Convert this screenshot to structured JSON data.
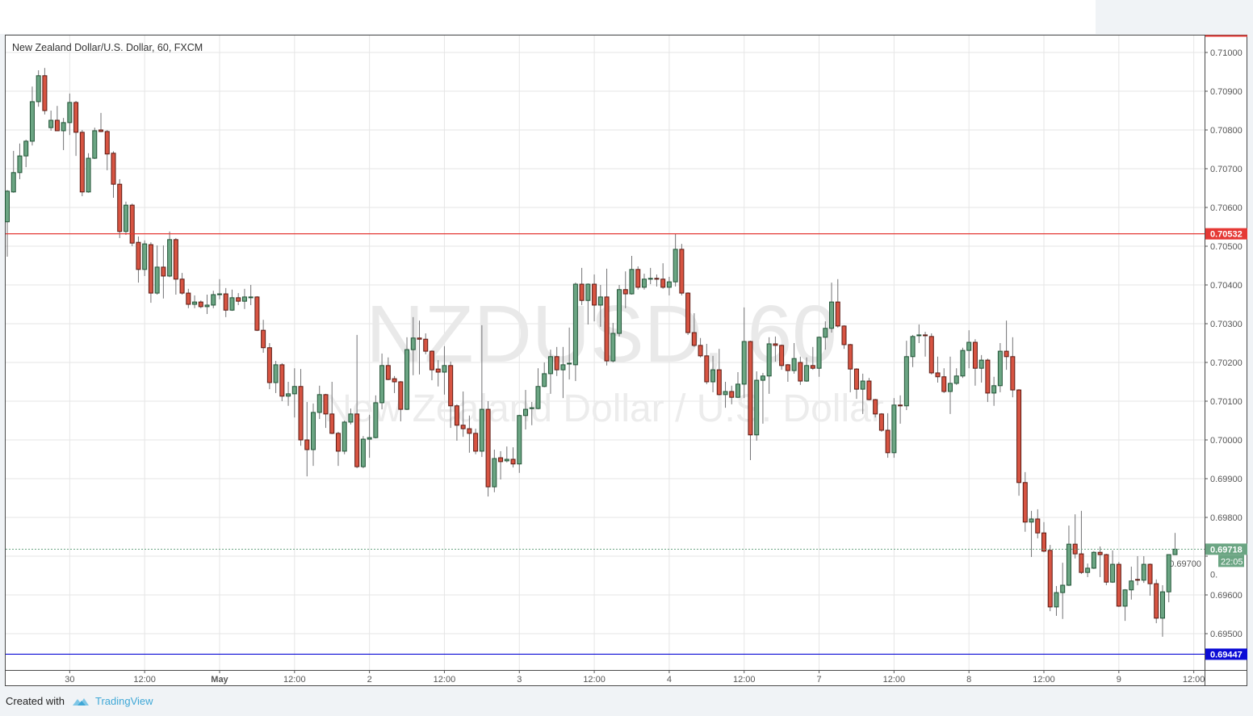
{
  "header": {
    "title": "New Zealand Dollar/U.S. Dollar, 60, FXCM"
  },
  "watermark": {
    "symbol": "NZDUSD, 60",
    "description": "New Zealand Dollar / U.S. Dollar"
  },
  "footer": {
    "created_with": "Created with",
    "brand": "TradingView",
    "logo_icon": "tradingview-cloud-icon"
  },
  "colors": {
    "up": "#6ba583",
    "up_border": "#225437",
    "down": "#d75442",
    "down_border": "#5b1a13",
    "wick": "#737375",
    "resistance": "#e53935",
    "support": "#0b0bd6",
    "last_price": "#6ba583"
  },
  "chart_data": {
    "type": "candlestick",
    "symbol": "NZDUSD",
    "interval": "60",
    "exchange": "FXCM",
    "grid": true,
    "ylim": [
      0.6944,
      0.7104
    ],
    "y_ticks": [
      "0.71000",
      "0.70900",
      "0.70800",
      "0.70700",
      "0.70600",
      "0.70500",
      "0.70400",
      "0.70300",
      "0.70200",
      "0.70100",
      "0.70000",
      "0.69900",
      "0.69800",
      "0.69700",
      "0.69600",
      "0.69500"
    ],
    "x_ticks": [
      {
        "label": "30",
        "bar": 10
      },
      {
        "label": "12:00",
        "bar": 22
      },
      {
        "label": "May",
        "bar": 34,
        "bold": true
      },
      {
        "label": "12:00",
        "bar": 46
      },
      {
        "label": "2",
        "bar": 58
      },
      {
        "label": "12:00",
        "bar": 70
      },
      {
        "label": "3",
        "bar": 82
      },
      {
        "label": "12:00",
        "bar": 94
      },
      {
        "label": "4",
        "bar": 106
      },
      {
        "label": "12:00",
        "bar": 118
      },
      {
        "label": "7",
        "bar": 130
      },
      {
        "label": "12:00",
        "bar": 142
      },
      {
        "label": "8",
        "bar": 154
      },
      {
        "label": "12:00",
        "bar": 166
      },
      {
        "label": "9",
        "bar": 178
      },
      {
        "label": "12:00",
        "bar": 190
      }
    ],
    "horizontal_lines": [
      {
        "price": 0.70532,
        "label": "0.70532",
        "color": "#e53935",
        "style": "solid"
      },
      {
        "price": 0.69447,
        "label": "0.69447",
        "color": "#0b0bd6",
        "style": "solid"
      }
    ],
    "last_price": {
      "price": 0.69718,
      "label": "0.69718",
      "countdown": "22:05",
      "hidden_tick": "0."
    },
    "ohlc_columns": [
      "open",
      "high",
      "low",
      "close"
    ],
    "candles": [
      [
        0.70563,
        0.70645,
        0.70473,
        0.70642
      ],
      [
        0.7064,
        0.70746,
        0.70638,
        0.7069
      ],
      [
        0.7069,
        0.70765,
        0.70673,
        0.70733
      ],
      [
        0.70733,
        0.70775,
        0.70704,
        0.70771
      ],
      [
        0.70771,
        0.70912,
        0.7076,
        0.70873
      ],
      [
        0.70873,
        0.70954,
        0.7086,
        0.7094
      ],
      [
        0.7094,
        0.7096,
        0.7084,
        0.7085
      ],
      [
        0.70806,
        0.7085,
        0.70798,
        0.70825
      ],
      [
        0.70825,
        0.70862,
        0.70798,
        0.70798
      ],
      [
        0.70798,
        0.70831,
        0.70748,
        0.70819
      ],
      [
        0.70819,
        0.70894,
        0.70787,
        0.70871
      ],
      [
        0.70871,
        0.70875,
        0.70733,
        0.70794
      ],
      [
        0.70794,
        0.708,
        0.70629,
        0.7064
      ],
      [
        0.7064,
        0.7074,
        0.70638,
        0.70727
      ],
      [
        0.70727,
        0.70806,
        0.70725,
        0.70798
      ],
      [
        0.708,
        0.70844,
        0.70794,
        0.70796
      ],
      [
        0.70796,
        0.708,
        0.70696,
        0.70738
      ],
      [
        0.7074,
        0.70745,
        0.70625,
        0.7066
      ],
      [
        0.7066,
        0.70673,
        0.70521,
        0.70538
      ],
      [
        0.70538,
        0.70615,
        0.70529,
        0.70606
      ],
      [
        0.70606,
        0.7061,
        0.705,
        0.70508
      ],
      [
        0.7051,
        0.70525,
        0.70406,
        0.7044
      ],
      [
        0.7044,
        0.70515,
        0.70423,
        0.70506
      ],
      [
        0.70504,
        0.7051,
        0.70354,
        0.70379
      ],
      [
        0.70379,
        0.70502,
        0.70375,
        0.70446
      ],
      [
        0.70446,
        0.70502,
        0.70365,
        0.70423
      ],
      [
        0.70423,
        0.70538,
        0.7042,
        0.70517
      ],
      [
        0.70517,
        0.70521,
        0.70375,
        0.70415
      ],
      [
        0.70415,
        0.70431,
        0.70375,
        0.70379
      ],
      [
        0.70379,
        0.7039,
        0.7034,
        0.7035
      ],
      [
        0.7035,
        0.70373,
        0.7034,
        0.70356
      ],
      [
        0.70356,
        0.7036,
        0.7034,
        0.70344
      ],
      [
        0.70344,
        0.70375,
        0.70325,
        0.70348
      ],
      [
        0.70348,
        0.70385,
        0.7034,
        0.70375
      ],
      [
        0.70375,
        0.70415,
        0.70363,
        0.70377
      ],
      [
        0.70377,
        0.70392,
        0.70317,
        0.70335
      ],
      [
        0.70335,
        0.70388,
        0.70333,
        0.70367
      ],
      [
        0.70367,
        0.70379,
        0.70348,
        0.70358
      ],
      [
        0.70358,
        0.7039,
        0.70338,
        0.70369
      ],
      [
        0.70369,
        0.704,
        0.70348,
        0.70369
      ],
      [
        0.70369,
        0.70371,
        0.70281,
        0.70283
      ],
      [
        0.70283,
        0.7031,
        0.70225,
        0.70238
      ],
      [
        0.70238,
        0.7025,
        0.70131,
        0.70148
      ],
      [
        0.70148,
        0.70204,
        0.70121,
        0.70194
      ],
      [
        0.70194,
        0.70198,
        0.701,
        0.70113
      ],
      [
        0.70113,
        0.7015,
        0.70088,
        0.70119
      ],
      [
        0.70119,
        0.70185,
        0.70058,
        0.70138
      ],
      [
        0.70138,
        0.70183,
        0.69985,
        0.7
      ],
      [
        0.7,
        0.70098,
        0.69906,
        0.69975
      ],
      [
        0.69975,
        0.70094,
        0.69933,
        0.70071
      ],
      [
        0.70071,
        0.7014,
        0.70054,
        0.70117
      ],
      [
        0.70117,
        0.70119,
        0.70031,
        0.70067
      ],
      [
        0.70067,
        0.7015,
        0.70015,
        0.70017
      ],
      [
        0.70017,
        0.70021,
        0.69933,
        0.69971
      ],
      [
        0.69971,
        0.7005,
        0.69963,
        0.70046
      ],
      [
        0.70046,
        0.70081,
        0.7004,
        0.70067
      ],
      [
        0.70067,
        0.70271,
        0.69927,
        0.69931
      ],
      [
        0.69931,
        0.7001,
        0.69927,
        0.70002
      ],
      [
        0.70002,
        0.70065,
        0.69954,
        0.70006
      ],
      [
        0.70006,
        0.70115,
        0.70004,
        0.70096
      ],
      [
        0.70096,
        0.70223,
        0.70079,
        0.70192
      ],
      [
        0.70192,
        0.70213,
        0.70154,
        0.70156
      ],
      [
        0.70158,
        0.70165,
        0.70121,
        0.7015
      ],
      [
        0.7015,
        0.70152,
        0.70048,
        0.70079
      ],
      [
        0.70079,
        0.70265,
        0.70077,
        0.70233
      ],
      [
        0.70233,
        0.70317,
        0.70167,
        0.70263
      ],
      [
        0.70263,
        0.70308,
        0.70169,
        0.7026
      ],
      [
        0.7026,
        0.70275,
        0.70221,
        0.70229
      ],
      [
        0.70229,
        0.70231,
        0.70154,
        0.70181
      ],
      [
        0.70183,
        0.70206,
        0.70138,
        0.70175
      ],
      [
        0.70175,
        0.70242,
        0.70117,
        0.70192
      ],
      [
        0.70192,
        0.70202,
        0.70031,
        0.70088
      ],
      [
        0.70088,
        0.70092,
        0.69998,
        0.70038
      ],
      [
        0.70038,
        0.70125,
        0.70008,
        0.70029
      ],
      [
        0.70029,
        0.70063,
        0.69967,
        0.70017
      ],
      [
        0.70017,
        0.70029,
        0.69963,
        0.69971
      ],
      [
        0.69971,
        0.70296,
        0.69956,
        0.70079
      ],
      [
        0.70079,
        0.701,
        0.69854,
        0.69879
      ],
      [
        0.69879,
        0.69975,
        0.69865,
        0.69952
      ],
      [
        0.69954,
        0.69971,
        0.69898,
        0.69944
      ],
      [
        0.69946,
        0.69983,
        0.69942,
        0.6995
      ],
      [
        0.6995,
        0.69981,
        0.69929,
        0.69938
      ],
      [
        0.69938,
        0.70065,
        0.69915,
        0.70063
      ],
      [
        0.70063,
        0.70129,
        0.70027,
        0.70079
      ],
      [
        0.70081,
        0.70098,
        0.70038,
        0.70083
      ],
      [
        0.70081,
        0.70185,
        0.70079,
        0.70138
      ],
      [
        0.70138,
        0.702,
        0.70136,
        0.70171
      ],
      [
        0.70171,
        0.70233,
        0.70119,
        0.70215
      ],
      [
        0.70215,
        0.7024,
        0.70165,
        0.70181
      ],
      [
        0.70181,
        0.7024,
        0.70108,
        0.70194
      ],
      [
        0.70196,
        0.7029,
        0.70156,
        0.70198
      ],
      [
        0.70194,
        0.70406,
        0.70152,
        0.70402
      ],
      [
        0.70402,
        0.70444,
        0.70348,
        0.7036
      ],
      [
        0.7036,
        0.70404,
        0.70298,
        0.70402
      ],
      [
        0.70402,
        0.70427,
        0.70306,
        0.70348
      ],
      [
        0.70348,
        0.704,
        0.70292,
        0.70369
      ],
      [
        0.70369,
        0.70442,
        0.70192,
        0.70204
      ],
      [
        0.70204,
        0.70302,
        0.702,
        0.70275
      ],
      [
        0.70275,
        0.704,
        0.70267,
        0.70388
      ],
      [
        0.70388,
        0.70435,
        0.7034,
        0.70377
      ],
      [
        0.70377,
        0.70475,
        0.70375,
        0.7044
      ],
      [
        0.7044,
        0.70448,
        0.70388,
        0.70394
      ],
      [
        0.70394,
        0.70429,
        0.70388,
        0.70415
      ],
      [
        0.70415,
        0.70444,
        0.70402,
        0.70417
      ],
      [
        0.70417,
        0.70427,
        0.70396,
        0.70415
      ],
      [
        0.70415,
        0.70456,
        0.7039,
        0.70394
      ],
      [
        0.70394,
        0.70421,
        0.70373,
        0.70408
      ],
      [
        0.70408,
        0.70533,
        0.70396,
        0.70492
      ],
      [
        0.70492,
        0.70506,
        0.70373,
        0.70379
      ],
      [
        0.70379,
        0.70381,
        0.70271,
        0.70277
      ],
      [
        0.70277,
        0.70327,
        0.7024,
        0.70244
      ],
      [
        0.70244,
        0.70263,
        0.70213,
        0.70217
      ],
      [
        0.70217,
        0.70248,
        0.70144,
        0.7015
      ],
      [
        0.7015,
        0.70217,
        0.70123,
        0.70181
      ],
      [
        0.70181,
        0.70235,
        0.70115,
        0.70117
      ],
      [
        0.70117,
        0.7015,
        0.70083,
        0.70125
      ],
      [
        0.70125,
        0.7014,
        0.70092,
        0.7011
      ],
      [
        0.7011,
        0.70175,
        0.70108,
        0.70144
      ],
      [
        0.70144,
        0.70342,
        0.70108,
        0.70254
      ],
      [
        0.70254,
        0.70256,
        0.69948,
        0.70013
      ],
      [
        0.70013,
        0.70177,
        0.69998,
        0.70154
      ],
      [
        0.70154,
        0.70173,
        0.70042,
        0.70165
      ],
      [
        0.70165,
        0.70265,
        0.70119,
        0.70248
      ],
      [
        0.70248,
        0.70267,
        0.70202,
        0.70244
      ],
      [
        0.70244,
        0.70246,
        0.70181,
        0.70192
      ],
      [
        0.70194,
        0.70196,
        0.7015,
        0.70179
      ],
      [
        0.70179,
        0.7025,
        0.70171,
        0.7021
      ],
      [
        0.702,
        0.70215,
        0.70142,
        0.70152
      ],
      [
        0.70152,
        0.70213,
        0.7015,
        0.70192
      ],
      [
        0.70192,
        0.7024,
        0.70181,
        0.70185
      ],
      [
        0.70185,
        0.70267,
        0.70163,
        0.70265
      ],
      [
        0.70265,
        0.70306,
        0.70233,
        0.70288
      ],
      [
        0.70288,
        0.70406,
        0.70277,
        0.70356
      ],
      [
        0.70356,
        0.70415,
        0.7029,
        0.70294
      ],
      [
        0.70294,
        0.70296,
        0.70235,
        0.70246
      ],
      [
        0.70246,
        0.70248,
        0.70123,
        0.70183
      ],
      [
        0.70183,
        0.70185,
        0.70106,
        0.70131
      ],
      [
        0.70131,
        0.70171,
        0.70067,
        0.70152
      ],
      [
        0.70152,
        0.7016,
        0.70102,
        0.70104
      ],
      [
        0.70104,
        0.70106,
        0.70058,
        0.70067
      ],
      [
        0.70067,
        0.70069,
        0.70021,
        0.70025
      ],
      [
        0.70025,
        0.70069,
        0.69954,
        0.69967
      ],
      [
        0.69967,
        0.70108,
        0.69954,
        0.7009
      ],
      [
        0.7009,
        0.70115,
        0.70042,
        0.70088
      ],
      [
        0.70088,
        0.70256,
        0.70077,
        0.70215
      ],
      [
        0.70215,
        0.70271,
        0.70188,
        0.70267
      ],
      [
        0.70269,
        0.70298,
        0.7025,
        0.70271
      ],
      [
        0.70271,
        0.70279,
        0.70215,
        0.70269
      ],
      [
        0.70267,
        0.70275,
        0.70169,
        0.70173
      ],
      [
        0.70173,
        0.70215,
        0.70148,
        0.70163
      ],
      [
        0.70163,
        0.70185,
        0.70121,
        0.70125
      ],
      [
        0.70125,
        0.70215,
        0.70067,
        0.70146
      ],
      [
        0.70146,
        0.70185,
        0.70142,
        0.70165
      ],
      [
        0.70165,
        0.70238,
        0.7016,
        0.70231
      ],
      [
        0.70231,
        0.70283,
        0.70185,
        0.70252
      ],
      [
        0.70252,
        0.7026,
        0.7014,
        0.70185
      ],
      [
        0.70185,
        0.70219,
        0.70148,
        0.70206
      ],
      [
        0.70206,
        0.7021,
        0.70098,
        0.70121
      ],
      [
        0.70121,
        0.70163,
        0.70088,
        0.7014
      ],
      [
        0.7014,
        0.7025,
        0.70123,
        0.70229
      ],
      [
        0.70229,
        0.70308,
        0.70181,
        0.70215
      ],
      [
        0.70215,
        0.70265,
        0.7011,
        0.70129
      ],
      [
        0.70129,
        0.70131,
        0.69856,
        0.6989
      ],
      [
        0.6989,
        0.69917,
        0.69763,
        0.69788
      ],
      [
        0.69788,
        0.69817,
        0.69698,
        0.69796
      ],
      [
        0.69796,
        0.69821,
        0.69746,
        0.6976
      ],
      [
        0.6976,
        0.69788,
        0.6971,
        0.69713
      ],
      [
        0.69715,
        0.69729,
        0.69558,
        0.69569
      ],
      [
        0.69569,
        0.69623,
        0.69546,
        0.69606
      ],
      [
        0.69606,
        0.69683,
        0.69538,
        0.69625
      ],
      [
        0.69625,
        0.69779,
        0.69623,
        0.69731
      ],
      [
        0.69731,
        0.69808,
        0.69694,
        0.69706
      ],
      [
        0.69706,
        0.69817,
        0.69654,
        0.69658
      ],
      [
        0.69658,
        0.69681,
        0.69646,
        0.69669
      ],
      [
        0.69669,
        0.69713,
        0.69667,
        0.6971
      ],
      [
        0.6971,
        0.69725,
        0.69646,
        0.69704
      ],
      [
        0.69704,
        0.69706,
        0.69625,
        0.69633
      ],
      [
        0.69633,
        0.69715,
        0.69631,
        0.69679
      ],
      [
        0.69679,
        0.69685,
        0.69569,
        0.69571
      ],
      [
        0.69571,
        0.69615,
        0.69533,
        0.69613
      ],
      [
        0.69613,
        0.69673,
        0.69588,
        0.69636
      ],
      [
        0.6964,
        0.697,
        0.69625,
        0.69638
      ],
      [
        0.69638,
        0.697,
        0.69631,
        0.69679
      ],
      [
        0.69679,
        0.69681,
        0.69598,
        0.69629
      ],
      [
        0.69629,
        0.6964,
        0.69527,
        0.6954
      ],
      [
        0.6954,
        0.69625,
        0.69492,
        0.69608
      ],
      [
        0.69608,
        0.69704,
        0.69581,
        0.69704
      ],
      [
        0.69704,
        0.6976,
        0.69704,
        0.69718
      ]
    ]
  }
}
